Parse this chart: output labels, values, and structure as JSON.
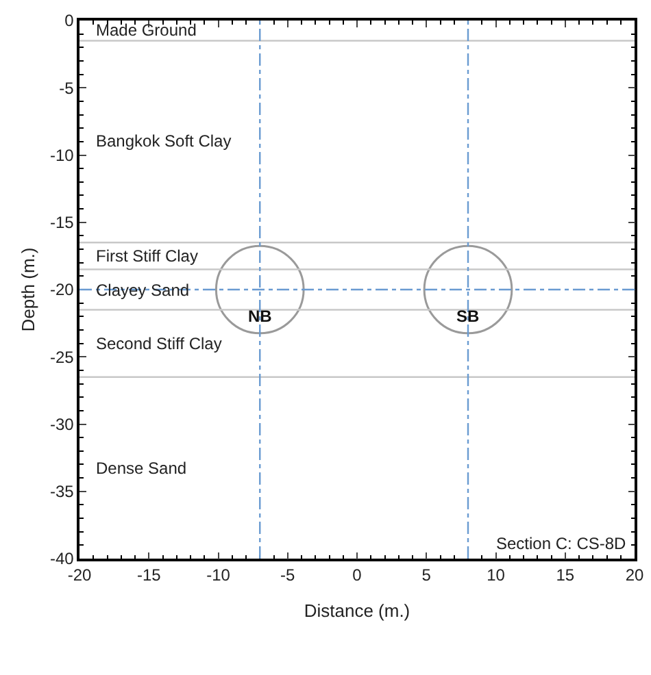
{
  "chart_data": {
    "type": "bubble",
    "xlabel": "Distance (m.)",
    "ylabel": "Depth (m.)",
    "xlim": [
      -20,
      20
    ],
    "xticks": [
      -20,
      -15,
      -10,
      -5,
      0,
      5,
      10,
      15,
      20
    ],
    "ylim": [
      -40,
      0
    ],
    "yticks": [
      -40,
      -35,
      -30,
      -25,
      -20,
      -15,
      -10,
      -5,
      0
    ],
    "series": [
      {
        "x": [
          -7,
          8
        ],
        "values": [
          -20,
          -20
        ],
        "sizes": [
          1,
          1
        ],
        "color": "#707070"
      }
    ],
    "ref_lines": [
      {
        "axis": "y",
        "value": -1.5,
        "color": "#c8c8c8",
        "line_style": "solid"
      },
      {
        "axis": "y",
        "value": -16.5,
        "color": "#c8c8c8",
        "line_style": "solid"
      },
      {
        "axis": "y",
        "value": -18.5,
        "color": "#c8c8c8",
        "line_style": "solid"
      },
      {
        "axis": "y",
        "value": -21.5,
        "color": "#c8c8c8",
        "line_style": "solid"
      },
      {
        "axis": "y",
        "value": -26.5,
        "color": "#c8c8c8",
        "line_style": "solid"
      },
      {
        "axis": "x",
        "value": -7,
        "color": "#6a9bd1",
        "line_style": "dashed"
      },
      {
        "axis": "x",
        "value": 8,
        "color": "#6a9bd1",
        "line_style": "dashed"
      },
      {
        "axis": "y",
        "value": -20,
        "color": "#6a9bd1",
        "line_style": "dashed"
      }
    ],
    "annotations": [
      "Made Ground",
      "Bangkok Soft Clay",
      "First Stiff Clay",
      "Clayey Sand",
      "Second Stiff Clay",
      "Dense Sand",
      {
        "text": "NB",
        "x": -7,
        "y": -22
      },
      {
        "text": "SB",
        "x": 8,
        "y": -22
      },
      "Section C: CS-8D"
    ]
  }
}
